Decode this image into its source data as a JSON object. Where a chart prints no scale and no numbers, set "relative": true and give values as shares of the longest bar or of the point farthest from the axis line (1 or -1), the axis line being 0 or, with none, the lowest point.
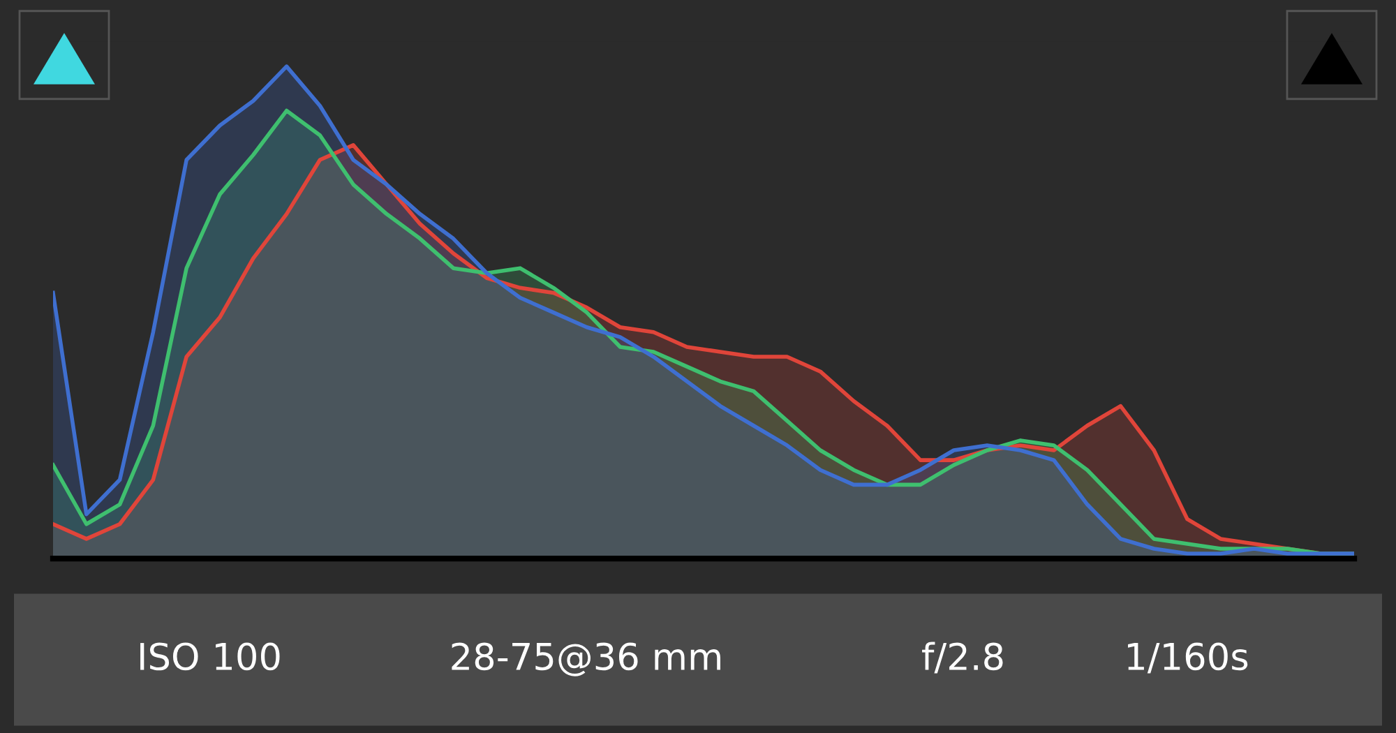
{
  "chart_data": {
    "type": "area",
    "relative": true,
    "grid": false,
    "legend": false,
    "categories": [
      null,
      null,
      null,
      null,
      null,
      null,
      null,
      null,
      null,
      null,
      null,
      null,
      null,
      null,
      null,
      null,
      null,
      null,
      null,
      null,
      null,
      null,
      null,
      null,
      null,
      null,
      null,
      null,
      null,
      null,
      null,
      null,
      null,
      null,
      null,
      null,
      null,
      null,
      null,
      null
    ],
    "series": [
      {
        "color": "#e0453a",
        "values": [
          0.07,
          0.04,
          0.07,
          0.16,
          0.41,
          0.49,
          0.61,
          0.7,
          0.81,
          0.84,
          0.76,
          0.68,
          0.62,
          0.57,
          0.55,
          0.54,
          0.51,
          0.47,
          0.46,
          0.43,
          0.42,
          0.41,
          0.41,
          0.38,
          0.32,
          0.27,
          0.2,
          0.2,
          0.22,
          0.23,
          0.22,
          0.27,
          0.31,
          0.22,
          0.08,
          0.04,
          0.03,
          0.02,
          0.01,
          0.01
        ]
      },
      {
        "color": "#3fbf6f",
        "values": [
          0.19,
          0.07,
          0.11,
          0.27,
          0.59,
          0.74,
          0.82,
          0.91,
          0.86,
          0.76,
          0.7,
          0.65,
          0.59,
          0.58,
          0.59,
          0.55,
          0.5,
          0.43,
          0.42,
          0.39,
          0.36,
          0.34,
          0.28,
          0.22,
          0.18,
          0.15,
          0.15,
          0.19,
          0.22,
          0.24,
          0.23,
          0.18,
          0.11,
          0.04,
          0.03,
          0.02,
          0.02,
          0.02,
          0.01,
          0.01
        ]
      },
      {
        "color": "#3f6fd0",
        "values": [
          0.54,
          0.09,
          0.16,
          0.46,
          0.81,
          0.88,
          0.93,
          1.0,
          0.92,
          0.81,
          0.76,
          0.7,
          0.65,
          0.58,
          0.53,
          0.5,
          0.47,
          0.45,
          0.41,
          0.36,
          0.31,
          0.27,
          0.23,
          0.18,
          0.15,
          0.15,
          0.18,
          0.22,
          0.23,
          0.22,
          0.2,
          0.11,
          0.04,
          0.02,
          0.01,
          0.01,
          0.02,
          0.01,
          0.01,
          0.01
        ]
      }
    ],
    "annotations": [
      "ISO 100",
      "28-75@36 mm",
      "f/2.8",
      "1/160s"
    ]
  }
}
